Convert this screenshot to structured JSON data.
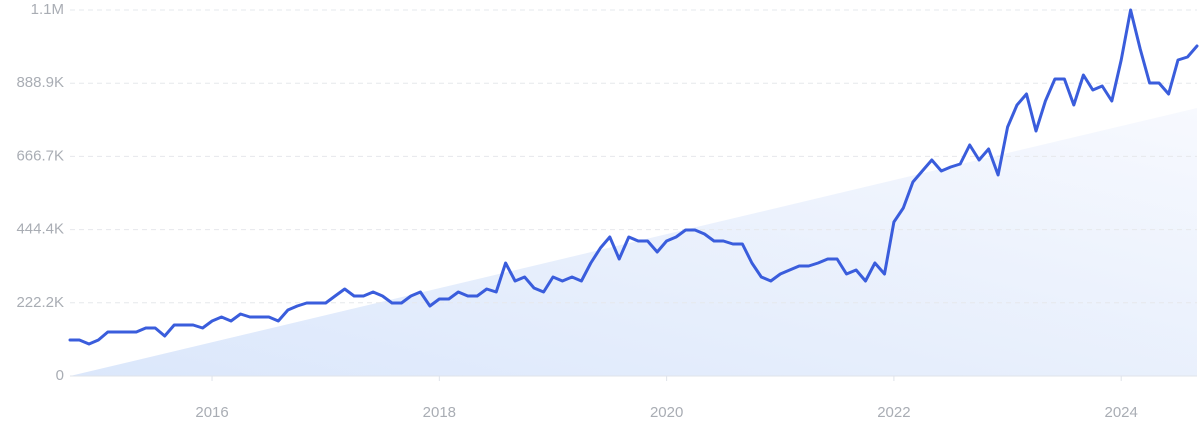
{
  "chart_data": {
    "type": "line",
    "x": [
      2014.75,
      2014.833,
      2014.917,
      2015,
      2015.083,
      2015.167,
      2015.25,
      2015.333,
      2015.417,
      2015.5,
      2015.583,
      2015.667,
      2015.75,
      2015.833,
      2015.917,
      2016,
      2016.083,
      2016.167,
      2016.25,
      2016.333,
      2016.417,
      2016.5,
      2016.583,
      2016.667,
      2016.75,
      2016.833,
      2016.917,
      2017,
      2017.083,
      2017.167,
      2017.25,
      2017.333,
      2017.417,
      2017.5,
      2017.583,
      2017.667,
      2017.75,
      2017.833,
      2017.917,
      2018,
      2018.083,
      2018.167,
      2018.25,
      2018.333,
      2018.417,
      2018.5,
      2018.583,
      2018.667,
      2018.75,
      2018.833,
      2018.917,
      2019,
      2019.083,
      2019.167,
      2019.25,
      2019.333,
      2019.417,
      2019.5,
      2019.583,
      2019.667,
      2019.75,
      2019.833,
      2019.917,
      2020,
      2020.083,
      2020.167,
      2020.25,
      2020.333,
      2020.417,
      2020.5,
      2020.583,
      2020.667,
      2020.75,
      2020.833,
      2020.917,
      2021,
      2021.083,
      2021.167,
      2021.25,
      2021.333,
      2021.417,
      2021.5,
      2021.583,
      2021.667,
      2021.75,
      2021.833,
      2021.917,
      2022,
      2022.083,
      2022.167,
      2022.25,
      2022.333,
      2022.417,
      2022.5,
      2022.583,
      2022.667,
      2022.75,
      2022.833,
      2022.917,
      2023,
      2023.083,
      2023.167,
      2023.25,
      2023.333,
      2023.417,
      2023.5,
      2023.583,
      2023.667,
      2023.75,
      2023.833,
      2023.917,
      2024,
      2024.083,
      2024.167,
      2024.25,
      2024.333,
      2024.417,
      2024.5,
      2024.583,
      2024.667
    ],
    "values": [
      109300,
      109300,
      97200,
      109300,
      133600,
      133600,
      133600,
      133600,
      145700,
      145700,
      121400,
      154800,
      154800,
      154800,
      145700,
      167000,
      179100,
      167000,
      188200,
      179100,
      179100,
      179100,
      167000,
      200400,
      212500,
      221600,
      221600,
      221600,
      242900,
      264100,
      242900,
      242900,
      255000,
      242900,
      221600,
      221600,
      242900,
      255000,
      212500,
      233800,
      233800,
      255000,
      242900,
      242900,
      264100,
      255000,
      343100,
      288400,
      300600,
      267200,
      255000,
      300600,
      288400,
      300600,
      288400,
      343100,
      388600,
      422000,
      355200,
      422000,
      409900,
      409900,
      376500,
      409900,
      422000,
      443300,
      443300,
      431100,
      409900,
      409900,
      400800,
      400800,
      343100,
      300600,
      288400,
      309700,
      321800,
      334000,
      334000,
      343100,
      355200,
      355200,
      309700,
      321800,
      288400,
      343100,
      309700,
      467500,
      510000,
      589000,
      622400,
      655800,
      622400,
      634500,
      643600,
      701300,
      655800,
      689200,
      610200,
      756000,
      822800,
      856200,
      743800,
      834900,
      901700,
      901700,
      822800,
      913800,
      868300,
      880400,
      834900,
      959400,
      1111000,
      992800,
      889500,
      889500,
      856200,
      959400,
      968500,
      1001900
    ],
    "color": "#3a5ddc",
    "xlim": [
      2014.75,
      2024.667
    ],
    "xticks": [
      2016,
      2018,
      2020,
      2022,
      2024
    ],
    "ylim": [
      0,
      1111100
    ],
    "yticks": [
      0,
      {
        "value": 222200,
        "label": "222.2K"
      },
      {
        "value": 444400,
        "label": "444.4K"
      },
      {
        "value": 666700,
        "label": "666.7K"
      },
      {
        "value": 888900,
        "label": "888.9K"
      },
      {
        "value": 1111100,
        "label": "1.1M"
      }
    ],
    "grid": true
  }
}
